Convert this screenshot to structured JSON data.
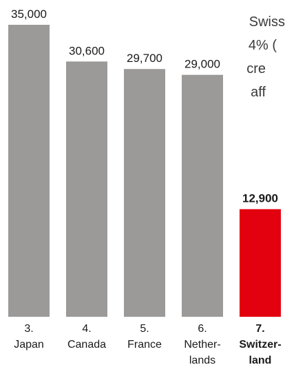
{
  "chart_data": {
    "type": "bar",
    "categories": [
      [
        "3.",
        "Japan"
      ],
      [
        "4.",
        "Canada"
      ],
      [
        "5.",
        "France"
      ],
      [
        "6.",
        "Nether-",
        "lands"
      ],
      [
        "7.",
        "Switzer-",
        "land"
      ]
    ],
    "values": [
      35000,
      30600,
      29700,
      29000,
      12900
    ],
    "value_labels": [
      "35,000",
      "30,600",
      "29,700",
      "29,000",
      "12,900"
    ],
    "highlight_index": 4,
    "ylim": [
      0,
      35000
    ],
    "grid": false,
    "colors": {
      "bar": "#9b9a98",
      "highlight": "#e3000f",
      "label": "#1a1a1a"
    }
  },
  "side_text": {
    "lines": [
      "Swiss",
      "4% (",
      "cre",
      "aff"
    ]
  }
}
